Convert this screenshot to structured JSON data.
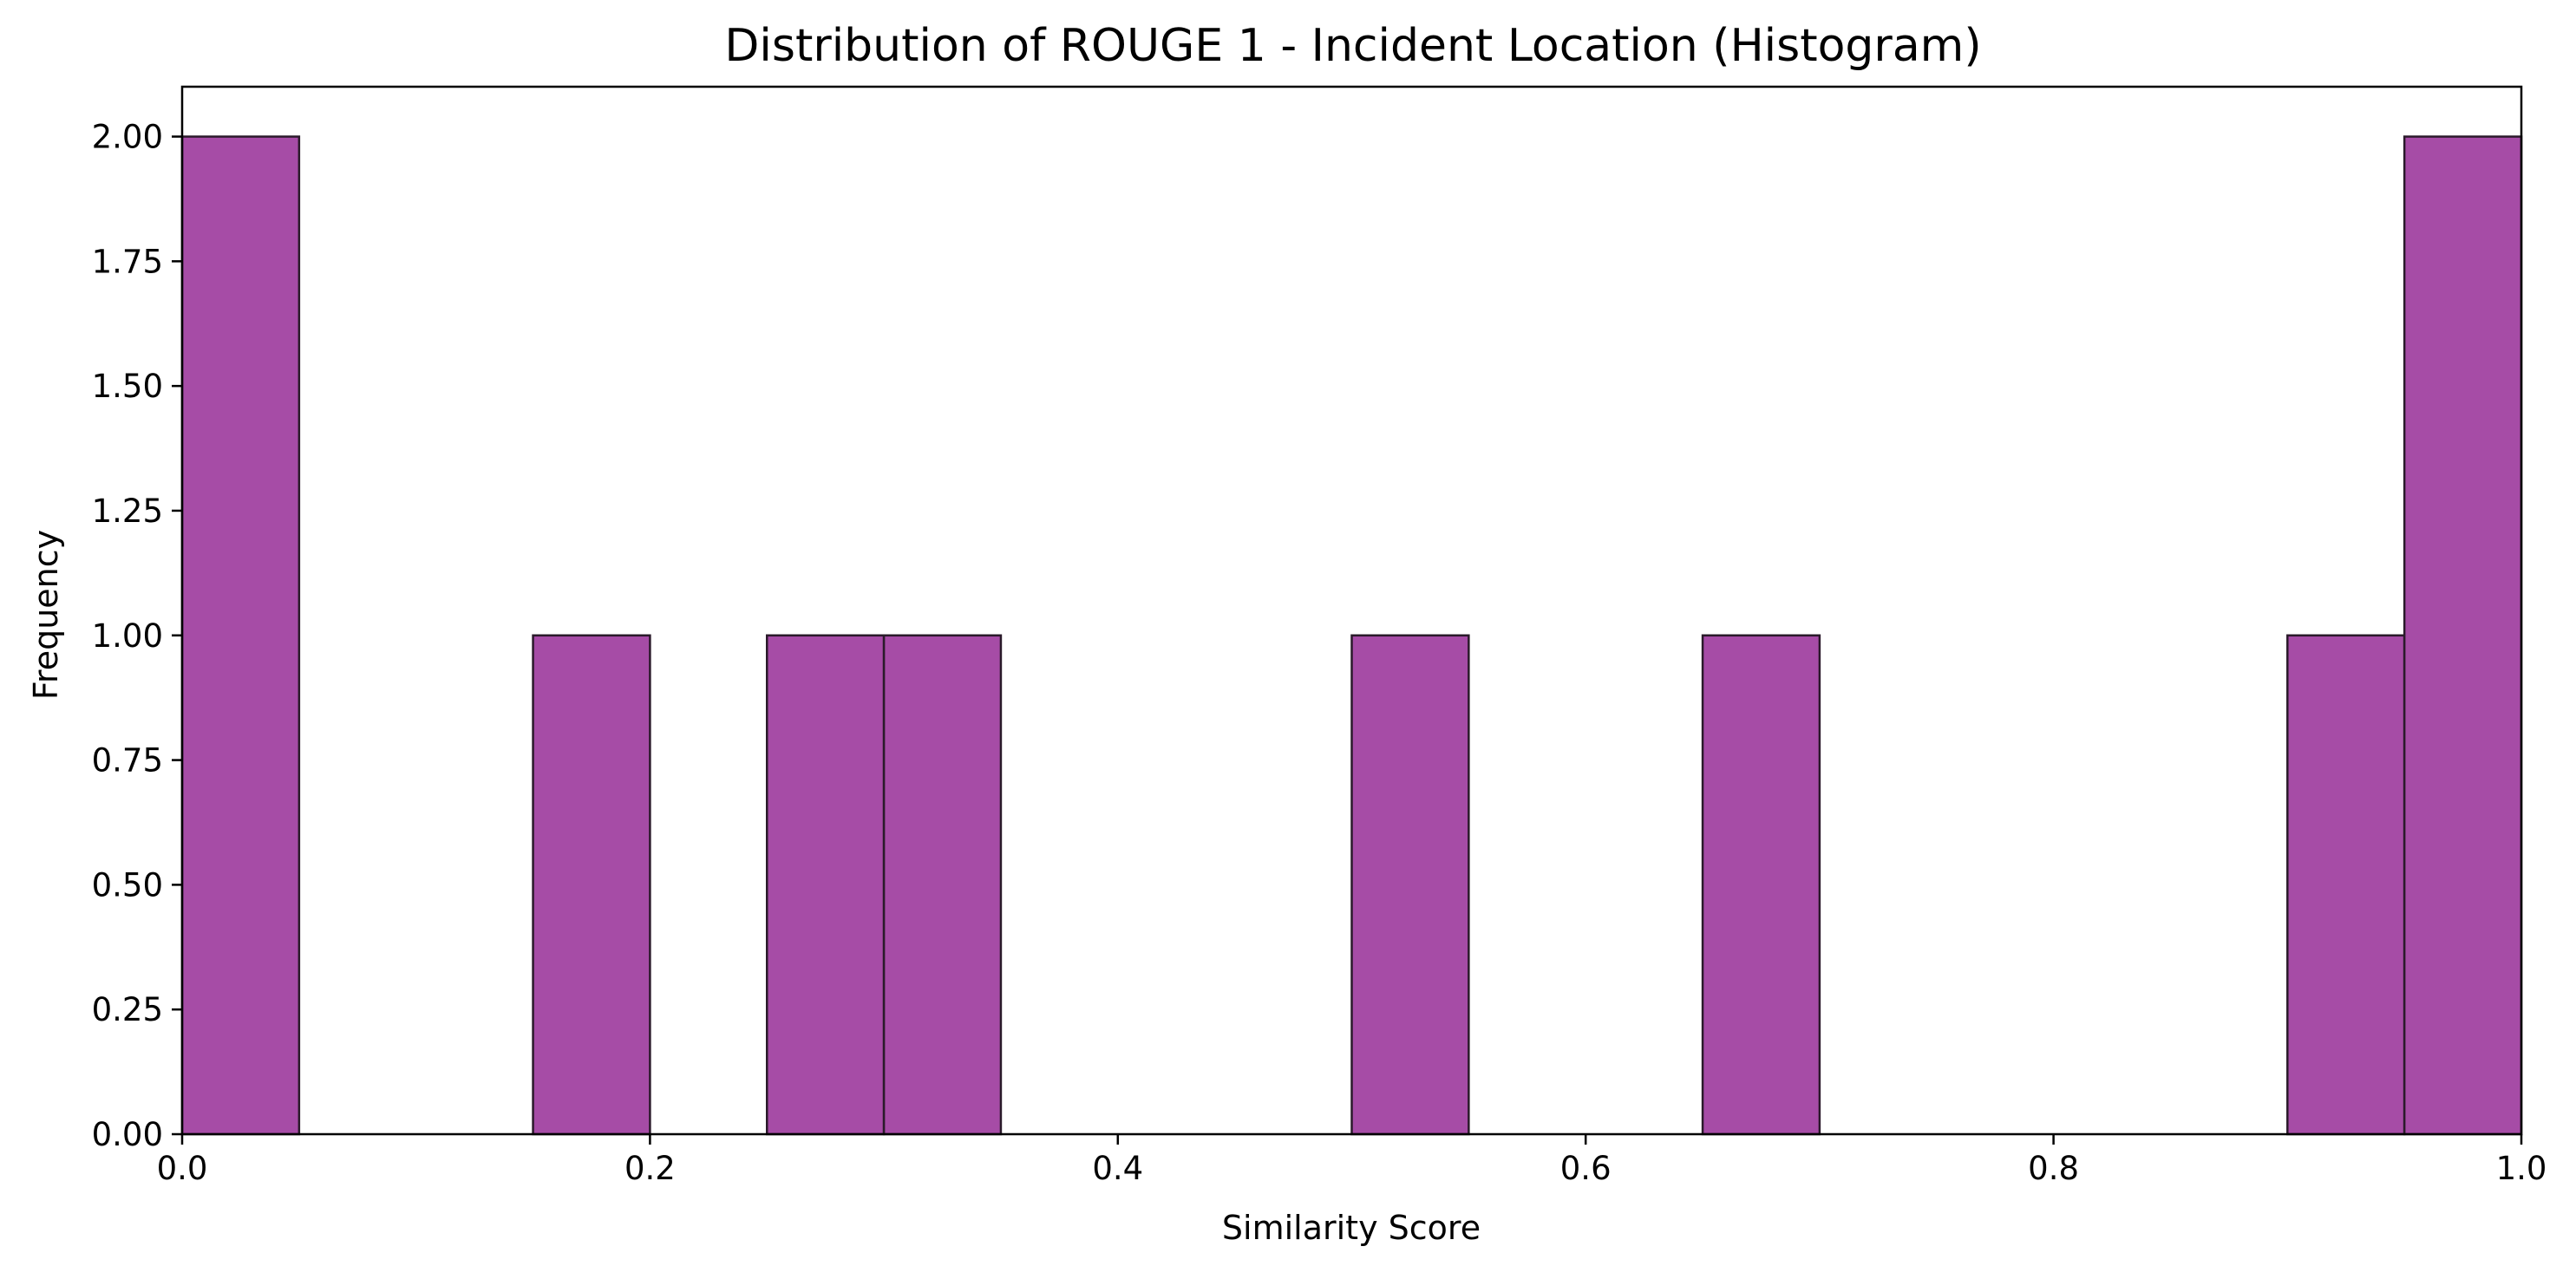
{
  "chart_data": {
    "type": "bar",
    "title": "Distribution of ROUGE 1 - Incident Location (Histogram)",
    "xlabel": "Similarity Score",
    "ylabel": "Frequency",
    "xlim": [
      0.0,
      1.0
    ],
    "ylim": [
      0.0,
      2.1
    ],
    "x_ticks": [
      "0.0",
      "0.2",
      "0.4",
      "0.6",
      "0.8",
      "1.0"
    ],
    "y_ticks": [
      "0.00",
      "0.25",
      "0.50",
      "0.75",
      "1.00",
      "1.25",
      "1.50",
      "1.75",
      "2.00"
    ],
    "bin_width": 0.05,
    "bins": [
      {
        "start": 0.0,
        "end": 0.05,
        "count": 2
      },
      {
        "start": 0.15,
        "end": 0.2,
        "count": 1
      },
      {
        "start": 0.25,
        "end": 0.3,
        "count": 1
      },
      {
        "start": 0.3,
        "end": 0.35,
        "count": 1
      },
      {
        "start": 0.5,
        "end": 0.55,
        "count": 1
      },
      {
        "start": 0.65,
        "end": 0.7,
        "count": 1
      },
      {
        "start": 0.9,
        "end": 0.95,
        "count": 1
      },
      {
        "start": 0.95,
        "end": 1.0,
        "count": 2
      }
    ],
    "bar_color": "#a64ca6",
    "edge_color": "#2a1a2a",
    "grid": false,
    "legend": "none"
  }
}
